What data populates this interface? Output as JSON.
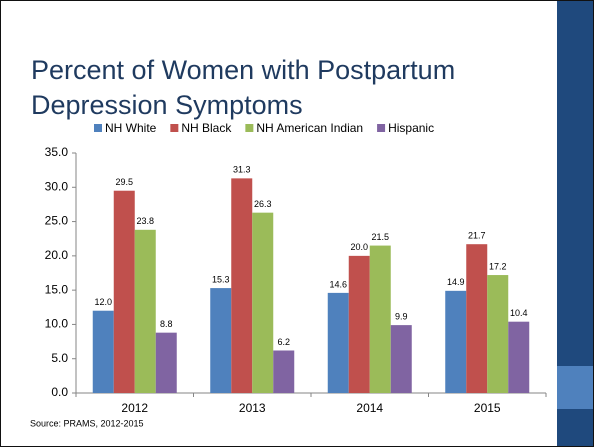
{
  "chart_data": {
    "type": "bar",
    "title": "Percent of Women with Postpartum Depression Symptoms",
    "source": "Source: PRAMS, 2012-2015",
    "categories": [
      "2012",
      "2013",
      "2014",
      "2015"
    ],
    "series": [
      {
        "name": "NH White",
        "color": "#4f81bd",
        "values": [
          12,
          15.3,
          14.6,
          14.9
        ],
        "value_labels": [
          "12.0",
          "15.3",
          "14.6",
          "14.9"
        ]
      },
      {
        "name": "NH Black",
        "color": "#c0504d",
        "values": [
          29.5,
          31.3,
          20,
          21.7
        ],
        "value_labels": [
          "29.5",
          "31.3",
          "20.0",
          "21.7"
        ]
      },
      {
        "name": "NH American Indian",
        "color": "#9bbb59",
        "values": [
          23.8,
          26.3,
          21.5,
          17.2
        ],
        "value_labels": [
          "23.8",
          "26.3",
          "21.5",
          "17.2"
        ]
      },
      {
        "name": "Hispanic",
        "color": "#8064a2",
        "values": [
          8.8,
          6.2,
          9.9,
          10.4
        ],
        "value_labels": [
          "8.8",
          "6.2",
          "9.9",
          "10.4"
        ]
      }
    ],
    "ylim": [
      0,
      35
    ],
    "yticks": [
      {
        "value": 0,
        "label": "0.0"
      },
      {
        "value": 5,
        "label": "5.0"
      },
      {
        "value": 10,
        "label": "10.0"
      },
      {
        "value": 15,
        "label": "15.0"
      },
      {
        "value": 20,
        "label": "20.0"
      },
      {
        "value": 25,
        "label": "25.0"
      },
      {
        "value": 30,
        "label": "30.0"
      },
      {
        "value": 35,
        "label": "35.0"
      }
    ],
    "grid": false,
    "legend": "top"
  }
}
